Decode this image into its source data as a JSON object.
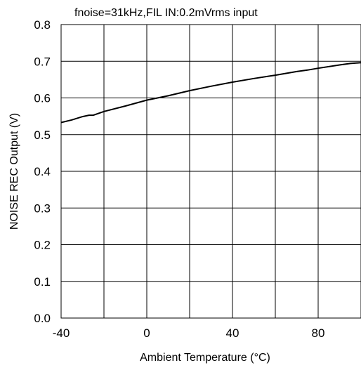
{
  "chart_data": {
    "type": "line",
    "title": "fnoise=31kHz,FIL IN:0.2mVrms input",
    "xlabel": "Ambient Temperature (°C)",
    "ylabel": "NOISE REC Output (V)",
    "xlim": [
      -40,
      100
    ],
    "ylim": [
      0,
      0.8
    ],
    "x_ticks": [
      -40,
      0,
      40,
      80
    ],
    "x_tick_labels": [
      "-40",
      "0",
      "40",
      "80"
    ],
    "x_grid_step": 20,
    "y_ticks": [
      0,
      0.1,
      0.2,
      0.3,
      0.4,
      0.5,
      0.6,
      0.7,
      0.8
    ],
    "y_tick_labels": [
      "0.0",
      "0.1",
      "0.2",
      "0.3",
      "0.4",
      "0.5",
      "0.6",
      "0.7",
      "0.8"
    ],
    "grid": true,
    "legend": "none",
    "colors": {
      "line": "#000000",
      "grid": "#000000",
      "background": "#ffffff"
    },
    "series": [
      {
        "x": [
          -40,
          -35,
          -30,
          -27,
          -25,
          -20,
          -10,
          0,
          10,
          20,
          30,
          40,
          50,
          60,
          70,
          75,
          80,
          90,
          95,
          100
        ],
        "y": [
          0.533,
          0.54,
          0.549,
          0.553,
          0.553,
          0.563,
          0.578,
          0.594,
          0.606,
          0.62,
          0.632,
          0.643,
          0.653,
          0.662,
          0.672,
          0.676,
          0.681,
          0.69,
          0.694,
          0.696
        ]
      }
    ]
  }
}
